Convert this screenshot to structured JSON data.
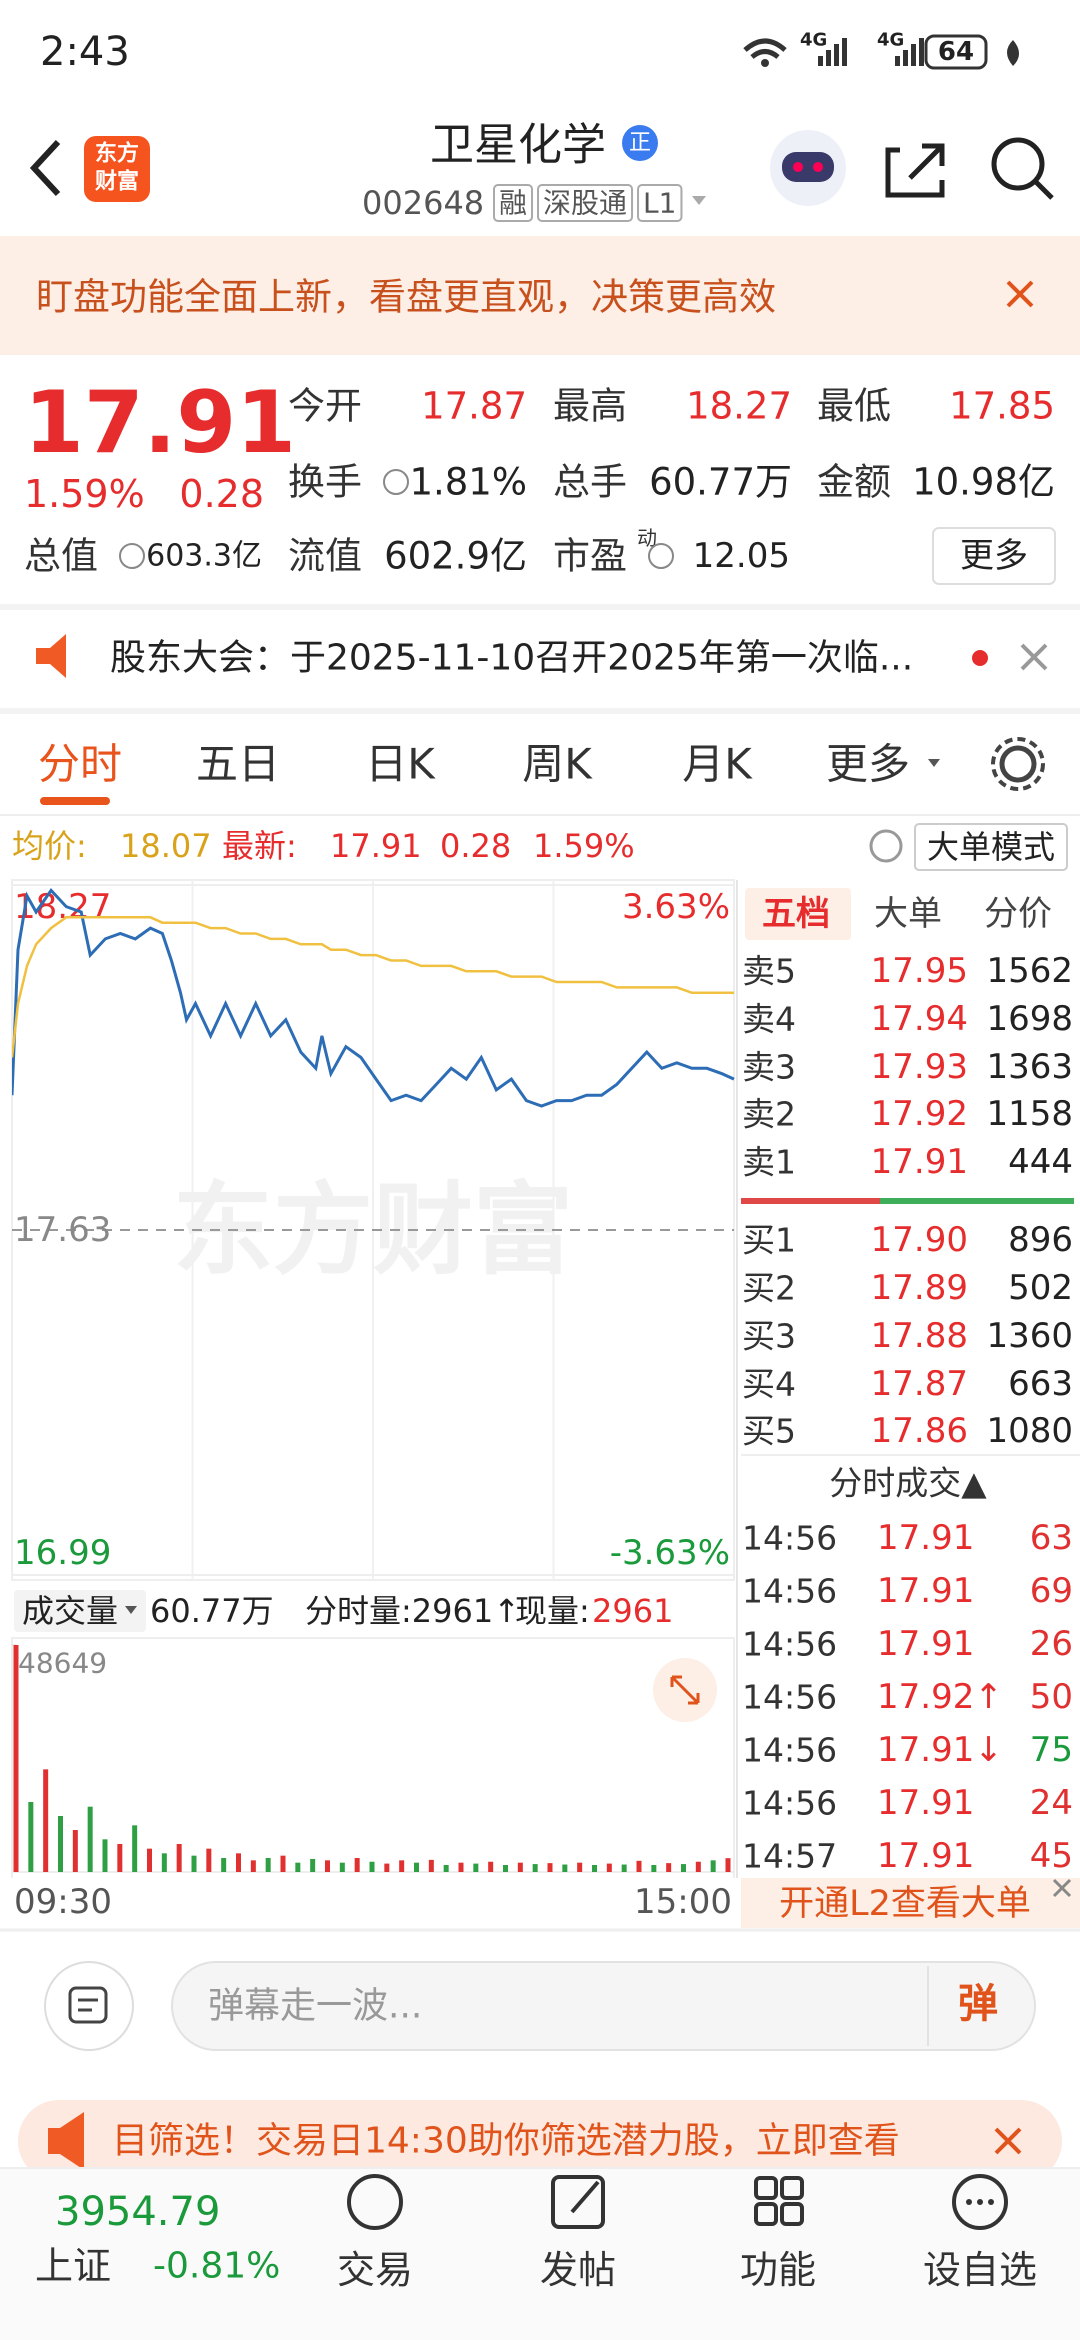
{
  "status_bar": {
    "time": "2:43",
    "network": [
      "4G",
      "4G"
    ],
    "battery": "64"
  },
  "header": {
    "logo": [
      "东方",
      "财富"
    ],
    "title": "卫星化学",
    "badge": "正",
    "code": "002648",
    "tags": [
      "融",
      "深股通",
      "L1"
    ]
  },
  "banner": {
    "text": "盯盘功能全面上新，看盘更直观，决策更高效"
  },
  "quote": {
    "price": "17.91",
    "change_pct": "1.59%",
    "change": "0.28",
    "stats": [
      {
        "label": "今开",
        "value": "17.87"
      },
      {
        "label": "最高",
        "value": "18.27"
      },
      {
        "label": "最低",
        "value": "17.85"
      },
      {
        "label": "换手",
        "value": "1.81%"
      },
      {
        "label": "总手",
        "value": "60.77万"
      },
      {
        "label": "金额",
        "value": "10.98亿"
      },
      {
        "label": "总值",
        "value": "603.3亿"
      },
      {
        "label": "流值",
        "value": "602.9亿"
      },
      {
        "label": "市盈",
        "sup": "动",
        "value": "12.05"
      }
    ],
    "more": "更多"
  },
  "notice": {
    "text": "股东大会：于2025-11-10召开2025年第一次临..."
  },
  "tabs": [
    "分时",
    "五日",
    "日K",
    "周K",
    "月K",
    "更多"
  ],
  "info_line": {
    "avg_label": "均价:",
    "avg": "18.07",
    "latest_label": "最新:",
    "latest": "17.91",
    "change": "0.28",
    "pct": "1.59%",
    "mode": "大单模式"
  },
  "watermark": "东方财富",
  "chart_data": [
    {
      "type": "line",
      "x": [
        0,
        2,
        5,
        8,
        13,
        18,
        23,
        26,
        31,
        36,
        41,
        46,
        50,
        53,
        56,
        58,
        61,
        66,
        71,
        76,
        81,
        86,
        91,
        96,
        101,
        103,
        106,
        111,
        116,
        121,
        126,
        131,
        136,
        141,
        146,
        151,
        156,
        161,
        166,
        171,
        176,
        181,
        186,
        191,
        196,
        201,
        206,
        211,
        216,
        221,
        226,
        231,
        236,
        240
      ],
      "series": [
        {
          "color": "#2d6db5",
          "values": [
            17.88,
            18.15,
            18.25,
            18.22,
            18.26,
            18.23,
            18.22,
            18.14,
            18.17,
            18.18,
            18.17,
            18.19,
            18.18,
            18.13,
            18.07,
            18.02,
            18.05,
            17.99,
            18.05,
            17.99,
            18.05,
            17.99,
            18.02,
            17.96,
            17.93,
            17.99,
            17.92,
            17.97,
            17.95,
            17.91,
            17.87,
            17.88,
            17.87,
            17.9,
            17.93,
            17.91,
            17.95,
            17.89,
            17.91,
            17.87,
            17.86,
            17.87,
            17.87,
            17.88,
            17.88,
            17.9,
            17.93,
            17.96,
            17.93,
            17.94,
            17.93,
            17.93,
            17.92,
            17.91
          ]
        },
        {
          "color": "#f0c040",
          "values": [
            17.95,
            18.05,
            18.12,
            18.16,
            18.19,
            18.21,
            18.21,
            18.21,
            18.21,
            18.21,
            18.21,
            18.21,
            18.2,
            18.2,
            18.2,
            18.2,
            18.2,
            18.19,
            18.19,
            18.18,
            18.18,
            18.17,
            18.17,
            18.16,
            18.16,
            18.16,
            18.15,
            18.15,
            18.14,
            18.14,
            18.13,
            18.13,
            18.12,
            18.12,
            18.12,
            18.11,
            18.11,
            18.11,
            18.1,
            18.1,
            18.1,
            18.09,
            18.09,
            18.09,
            18.09,
            18.08,
            18.08,
            18.08,
            18.08,
            18.08,
            18.07,
            18.07,
            18.07,
            18.07
          ]
        }
      ],
      "xlim": [
        0,
        240
      ],
      "xticks": [
        {
          "value": 0,
          "label": "09:30"
        },
        {
          "value": 240,
          "label": "15:00"
        }
      ],
      "ylim": [
        16.99,
        18.27
      ],
      "yticks": [
        18.27,
        17.63,
        16.99
      ],
      "y2lim": [
        -3.63,
        3.63
      ],
      "y2ticks": [
        {
          "value": 3.63,
          "label": "3.63%"
        },
        {
          "value": -3.63,
          "label": "-3.63%"
        }
      ],
      "grid": true
    },
    {
      "type": "bar",
      "x": [
        0,
        5,
        10,
        15,
        20,
        25,
        30,
        35,
        40,
        45,
        50,
        55,
        60,
        65,
        70,
        75,
        80,
        85,
        90,
        95,
        100,
        105,
        110,
        115,
        120,
        125,
        130,
        135,
        140,
        145,
        150,
        155,
        160,
        165,
        170,
        175,
        180,
        185,
        190,
        195,
        200,
        205,
        210,
        215,
        220,
        225,
        230,
        235,
        240
      ],
      "values": [
        48649,
        15000,
        22000,
        12000,
        9000,
        14000,
        7000,
        6000,
        10000,
        5000,
        4000,
        6000,
        3500,
        5000,
        3000,
        4000,
        2500,
        3000,
        3500,
        2000,
        2800,
        2500,
        2000,
        3000,
        2200,
        1800,
        2500,
        2000,
        2600,
        1500,
        2000,
        1800,
        2200,
        1500,
        2000,
        1700,
        1900,
        1600,
        2000,
        1500,
        1800,
        1600,
        2400,
        1500,
        1900,
        1700,
        2200,
        2500,
        2961
      ],
      "colors": [
        "#e03030",
        "#2ea043",
        "#e03030",
        "#2ea043",
        "#e03030",
        "#2ea043",
        "#2ea043",
        "#e03030",
        "#2ea043",
        "#e03030",
        "#2ea043",
        "#e03030",
        "#2ea043",
        "#e03030",
        "#2ea043",
        "#e03030",
        "#e03030",
        "#2ea043",
        "#e03030",
        "#2ea043",
        "#2ea043",
        "#e03030",
        "#2ea043",
        "#e03030",
        "#2ea043",
        "#e03030",
        "#e03030",
        "#2ea043",
        "#e03030",
        "#2ea043",
        "#e03030",
        "#2ea043",
        "#e03030",
        "#2ea043",
        "#e03030",
        "#2ea043",
        "#e03030",
        "#2ea043",
        "#e03030",
        "#2ea043",
        "#e03030",
        "#2ea043",
        "#e03030",
        "#2ea043",
        "#e03030",
        "#2ea043",
        "#e03030",
        "#2ea043",
        "#e03030"
      ],
      "xlim": [
        0,
        240
      ],
      "ylim": [
        0,
        48649
      ],
      "yticks": [
        48649
      ]
    }
  ],
  "volume_line": {
    "label": "成交量",
    "total": "60.77万",
    "minute": "分时量:2961↑",
    "current_label": "现量:",
    "current": "2961"
  },
  "order_book": {
    "tabs": [
      "五档",
      "大单",
      "分价"
    ],
    "asks": [
      {
        "label": "卖5",
        "price": "17.95",
        "volume": "1562"
      },
      {
        "label": "卖4",
        "price": "17.94",
        "volume": "1698"
      },
      {
        "label": "卖3",
        "price": "17.93",
        "volume": "1363"
      },
      {
        "label": "卖2",
        "price": "17.92",
        "volume": "1158"
      },
      {
        "label": "卖1",
        "price": "17.91",
        "volume": "444"
      }
    ],
    "bids": [
      {
        "label": "买1",
        "price": "17.90",
        "volume": "896"
      },
      {
        "label": "买2",
        "price": "17.89",
        "volume": "502"
      },
      {
        "label": "买3",
        "price": "17.88",
        "volume": "1360"
      },
      {
        "label": "买4",
        "price": "17.87",
        "volume": "663"
      },
      {
        "label": "买5",
        "price": "17.86",
        "volume": "1080"
      }
    ]
  },
  "trades": {
    "title": "分时成交▲",
    "rows": [
      {
        "time": "14:56",
        "price": "17.91",
        "volume": "63",
        "color": "#e03030"
      },
      {
        "time": "14:56",
        "price": "17.91",
        "volume": "69",
        "color": "#e03030"
      },
      {
        "time": "14:56",
        "price": "17.91",
        "volume": "26",
        "color": "#e03030"
      },
      {
        "time": "14:56",
        "price": "17.92↑",
        "volume": "50",
        "color": "#e03030"
      },
      {
        "time": "14:56",
        "price": "17.91↓",
        "volume": "75",
        "color": "#1a9a3a"
      },
      {
        "time": "14:56",
        "price": "17.91",
        "volume": "24",
        "color": "#e03030"
      },
      {
        "time": "14:57",
        "price": "17.91",
        "volume": "45",
        "color": "#e03030"
      }
    ]
  },
  "l2_banner": "开通L2查看大单",
  "comment": {
    "placeholder": "弹幕走一波...",
    "button": "弹"
  },
  "ad": "目筛选！交易日14:30助你筛选潜力股，立即查看",
  "bottom_nav": {
    "index_value": "3954.79",
    "index_name": "上证",
    "index_change": "-0.81%",
    "items": [
      "交易",
      "发帖",
      "功能",
      "设自选"
    ]
  }
}
